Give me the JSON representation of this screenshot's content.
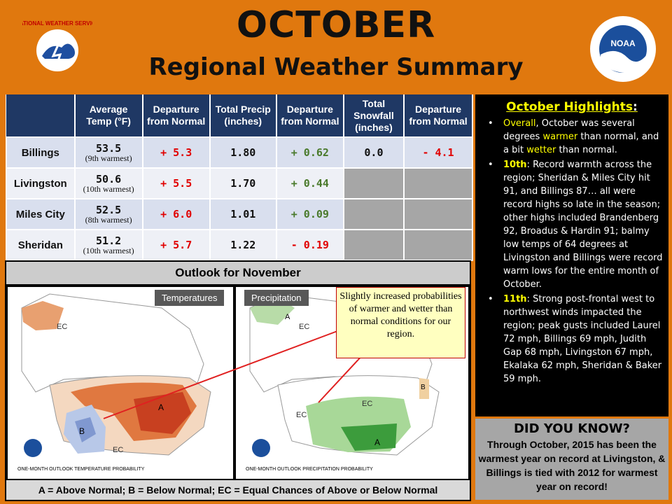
{
  "header": {
    "title": "OCTOBER",
    "subtitle": "Regional Weather Summary",
    "left_logo_text": "NATIONAL WEATHER SERVICE",
    "right_logo_text": "NOAA"
  },
  "table": {
    "headers": [
      "",
      "Average Temp (°F)",
      "Departure from Normal",
      "Total Precip (inches)",
      "Departure from Normal",
      "Total Snowfall (inches)",
      "Departure from Normal"
    ],
    "rows": [
      {
        "city": "Billings",
        "temp": "53.5",
        "rank": "(9th warmest)",
        "temp_dep": "+ 5.3",
        "precip": "1.80",
        "precip_dep": "+ 0.62",
        "snow": "0.0",
        "snow_dep": "- 4.1"
      },
      {
        "city": "Livingston",
        "temp": "50.6",
        "rank": "(10th warmest)",
        "temp_dep": "+ 5.5",
        "precip": "1.70",
        "precip_dep": "+ 0.44",
        "snow": "",
        "snow_dep": ""
      },
      {
        "city": "Miles City",
        "temp": "52.5",
        "rank": "(8th warmest)",
        "temp_dep": "+ 6.0",
        "precip": "1.01",
        "precip_dep": "+ 0.09",
        "snow": "",
        "snow_dep": ""
      },
      {
        "city": "Sheridan",
        "temp": "51.2",
        "rank": "(10th warmest)",
        "temp_dep": "+ 5.7",
        "precip": "1.22",
        "precip_dep": "- 0.19",
        "snow": "",
        "snow_dep": ""
      }
    ]
  },
  "highlights": {
    "title": "October Highlights",
    "b1_a": "Overall",
    "b1_b": ", October was several degrees ",
    "b1_c": "warmer",
    "b1_d": " than normal, and a bit ",
    "b1_e": "wetter",
    "b1_f": " than normal.",
    "b2_a": "10th",
    "b2_b": ": Record warmth across the region; Sheridan & Miles City hit 91, and Billings 87… all were record highs so late in the season; other highs included Brandenberg 92, Broadus & Hardin 91; balmy low temps of 64 degrees at Livingston and Billings were record warm lows for the entire month of October.",
    "b3_a": "11th",
    "b3_b": ": Strong post-frontal west to northwest winds impacted the region; peak gusts included Laurel 72 mph, Billings 69 mph, Judith Gap 68 mph, Livingston 67 mph, Ekalaka 62 mph, Sheridan & Baker 59 mph."
  },
  "did_you_know": {
    "title": "DID YOU KNOW?",
    "text": "Through October, 2015 has been the warmest year on record at Livingston, & Billings is tied with 2012 for warmest year on record!"
  },
  "outlook": {
    "title": "Outlook for November",
    "temp_label": "Temperatures",
    "precip_label": "Precipitation",
    "temp_caption": "ONE-MONTH OUTLOOK TEMPERATURE PROBABILITY",
    "precip_caption": "ONE-MONTH OUTLOOK PRECIPITATION PROBABILITY",
    "legend": "A = Above Normal;  B = Below Normal;  EC = Equal Chances of Above or Below Normal",
    "callout": "Slightly increased probabilities of warmer and wetter than normal conditions for our region.",
    "temp_map_labels": [
      "EC",
      "A",
      "B",
      "EC"
    ],
    "precip_map_labels": [
      "A",
      "EC",
      "EC",
      "A",
      "B",
      "EC"
    ]
  },
  "colors": {
    "background": "#e0780e",
    "table_header": "#1f3864",
    "highlight_yellow": "#ffff00",
    "positive_departure": "#e10000",
    "precip_positive": "#4a7a2c"
  }
}
